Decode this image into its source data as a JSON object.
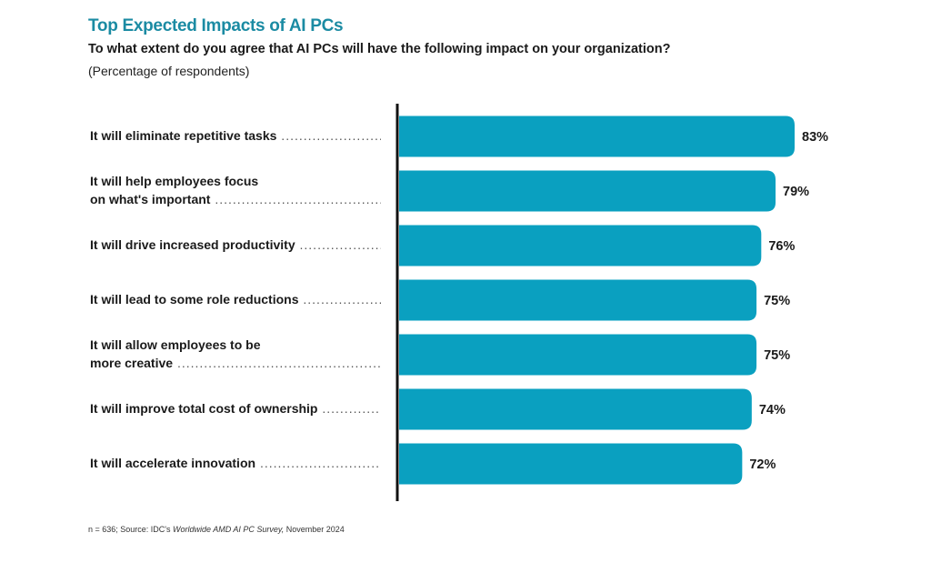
{
  "chart_data": {
    "type": "bar",
    "orientation": "horizontal",
    "title": "Top Expected Impacts of AI PCs",
    "subtitle": "To what extent do you agree that AI PCs will have the following impact on your organization?",
    "units": "(Percentage of respondents)",
    "categories": [
      [
        "It will eliminate repetitive tasks"
      ],
      [
        "It will help employees focus",
        "on what's important"
      ],
      [
        "It will drive increased productivity"
      ],
      [
        "It will lead to some role reductions"
      ],
      [
        "It will allow employees to be",
        "more creative"
      ],
      [
        "It will improve total cost of ownership"
      ],
      [
        "It will accelerate innovation"
      ]
    ],
    "values": [
      83,
      79,
      76,
      75,
      75,
      74,
      72
    ],
    "value_labels": [
      "83%",
      "79%",
      "76%",
      "75%",
      "75%",
      "74%",
      "72%"
    ],
    "xlim": [
      0,
      100
    ],
    "bar_color": "#0aa0c0"
  },
  "source": {
    "prefix": "n = 636; Source: IDC's ",
    "italic": "Worldwide AMD AI PC Survey,",
    "suffix": " November 2024"
  }
}
